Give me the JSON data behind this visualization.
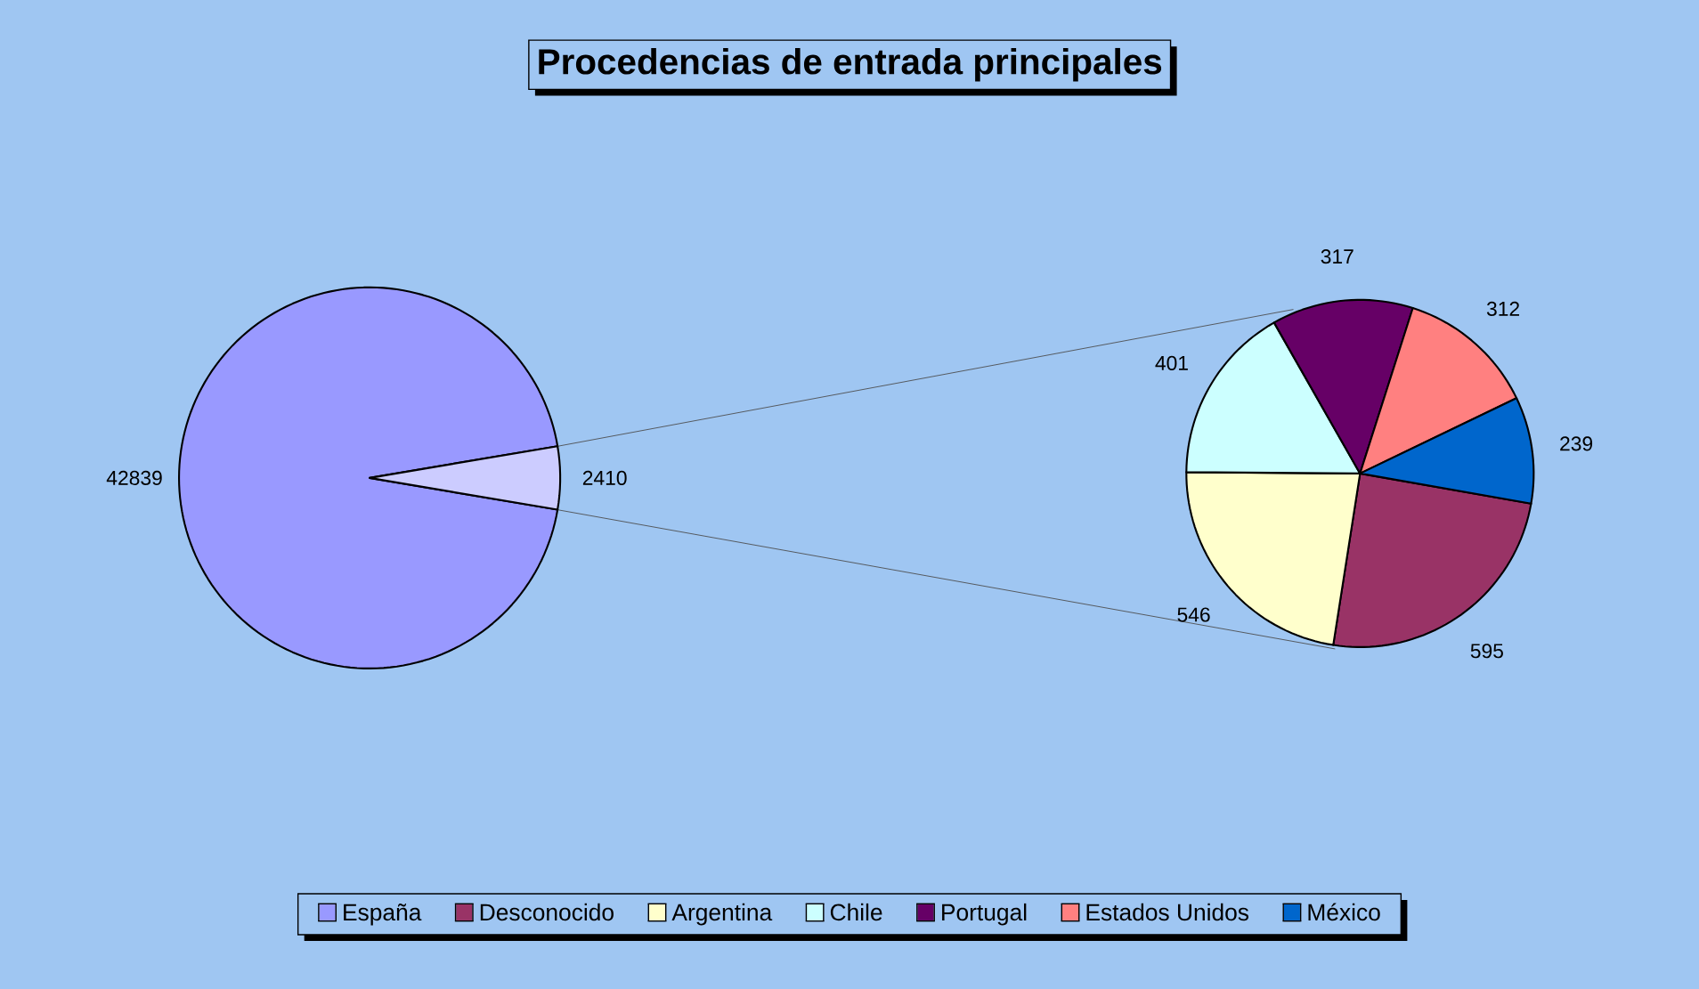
{
  "chart_data": [
    {
      "type": "pie",
      "title": "Procedencias de entrada principales",
      "categories": [
        "España",
        null
      ],
      "values": [
        42839,
        2410
      ],
      "colors": [
        "#9999ff",
        "#ccccff"
      ],
      "data_labels": true,
      "legend": "bottom"
    },
    {
      "type": "pie",
      "categories": [
        "Desconocido",
        "Argentina",
        "Chile",
        "Portugal",
        "Estados Unidos",
        "México"
      ],
      "values": [
        595,
        546,
        401,
        317,
        312,
        239
      ],
      "colors": [
        "#993366",
        "#ffffcc",
        "#ccffff",
        "#660066",
        "#ff8080",
        "#0066cc"
      ],
      "data_labels": true,
      "legend": "bottom"
    }
  ]
}
